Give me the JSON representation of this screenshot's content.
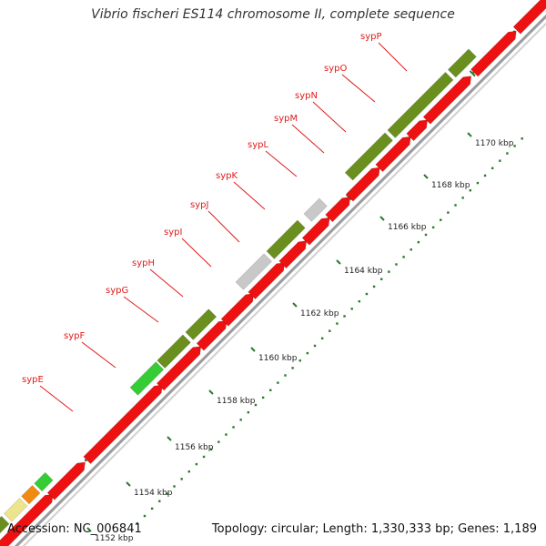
{
  "title": "Vibrio fischeri ES114 chromosome II, complete sequence",
  "footer": {
    "accession": "Accession: NC_006841",
    "summary": "Topology: circular; Length: 1,330,333 bp; Genes: 1,189"
  },
  "colors": {
    "forward_gene": "#6a8f1e",
    "reverse_gene": "#ee1111",
    "backbone": "#9b9b9b",
    "label": "#e01a1a",
    "highlight_green": "#36cc36",
    "highlight_gray": "#c8c8c8",
    "highlight_orange": "#f08a10",
    "highlight_khaki": "#eee48c"
  },
  "gene_labels": [
    "sypE",
    "sypF",
    "sypG",
    "sypH",
    "sypI",
    "sypJ",
    "sypK",
    "sypL",
    "sypM",
    "sypN",
    "sypO",
    "sypP"
  ],
  "scale_ticks": [
    "1152 kbp",
    "1154 kbp",
    "1156 kbp",
    "1158 kbp",
    "1160 kbp",
    "1162 kbp",
    "1164 kbp",
    "1166 kbp",
    "1168 kbp",
    "1170 kbp"
  ]
}
